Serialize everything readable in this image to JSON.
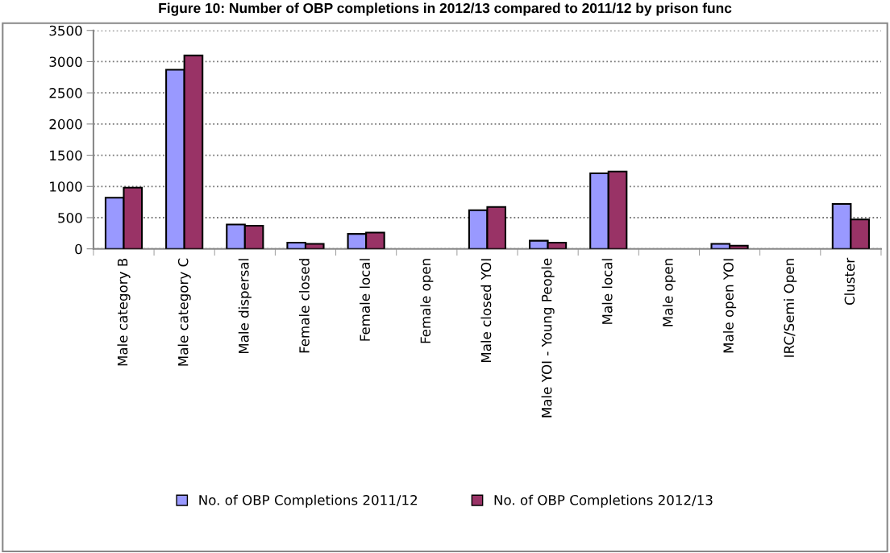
{
  "chart_data": {
    "type": "bar",
    "title": "Figure 10: Number of OBP completions in 2012/13 compared to 2011/12 by prison func",
    "categories": [
      "Male category B",
      "Male category C",
      "Male dispersal",
      "Female closed",
      "Female local",
      "Female open",
      "Male closed YOI",
      "Male YOI - Young People",
      "Male local",
      "Male open",
      "Male open YOI",
      "IRC/Semi Open",
      "Cluster"
    ],
    "series": [
      {
        "name": "No. of OBP Completions 2011/12",
        "color": "#9999ff",
        "values": [
          820,
          2870,
          390,
          100,
          240,
          0,
          620,
          130,
          1210,
          0,
          80,
          0,
          720
        ]
      },
      {
        "name": "No. of OBP Completions 2012/13",
        "color": "#993366",
        "values": [
          980,
          3100,
          370,
          80,
          260,
          0,
          670,
          100,
          1240,
          0,
          50,
          0,
          470
        ]
      }
    ],
    "ylim": [
      0,
      3500
    ],
    "yticks": [
      0,
      500,
      1000,
      1500,
      2000,
      2500,
      3000,
      3500
    ],
    "grid": "y",
    "legend": "bottom"
  }
}
